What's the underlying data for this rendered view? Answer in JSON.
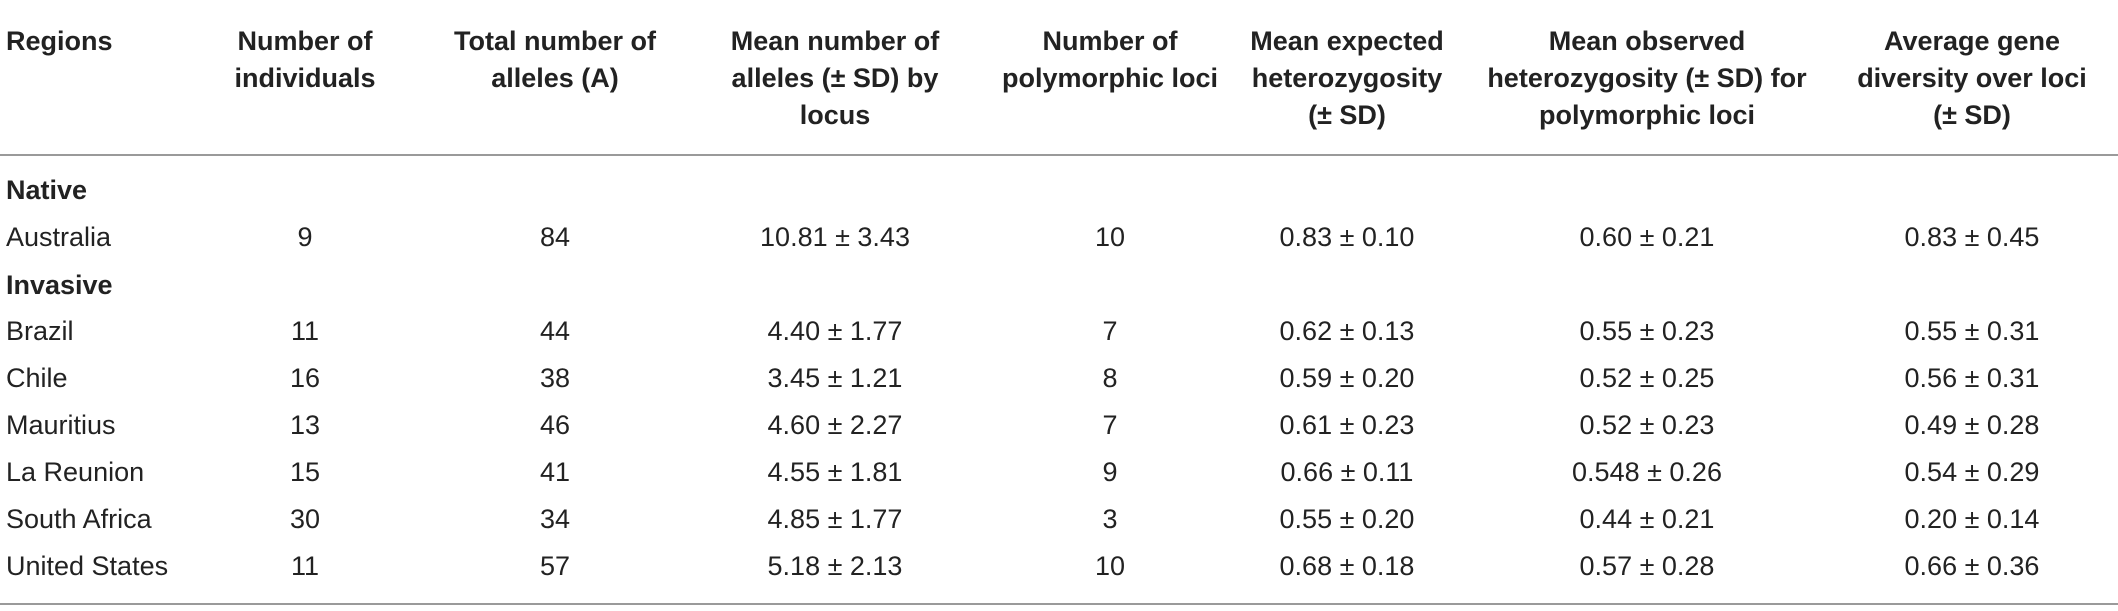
{
  "header": {
    "regions": "Regions",
    "individuals": [
      "Number of",
      "individuals"
    ],
    "alleles": [
      "Total number of",
      "alleles (A)"
    ],
    "mean_alleles": [
      "Mean number of",
      "alleles (± SD) by",
      "locus"
    ],
    "poly_loci": [
      "Number of",
      "polymorphic loci"
    ],
    "exp_het": [
      "Mean expected",
      "heterozygosity",
      "(± SD)"
    ],
    "obs_het": [
      "Mean observed",
      "heterozygosity (± SD) for",
      "polymorphic loci"
    ],
    "gene_div": [
      "Average gene",
      "diversity over loci",
      "(± SD)"
    ]
  },
  "groups": {
    "native": {
      "label": "Native",
      "rows": [
        [
          "Australia",
          "9",
          "84",
          "10.81 ± 3.43",
          "10",
          "0.83 ± 0.10",
          "0.60 ± 0.21",
          "0.83 ± 0.45"
        ]
      ]
    },
    "invasive": {
      "label": "Invasive",
      "rows": [
        [
          "Brazil",
          "11",
          "44",
          "4.40 ± 1.77",
          "7",
          "0.62 ± 0.13",
          "0.55 ± 0.23",
          "0.55 ± 0.31"
        ],
        [
          "Chile",
          "16",
          "38",
          "3.45 ± 1.21",
          "8",
          "0.59 ± 0.20",
          "0.52 ± 0.25",
          "0.56 ± 0.31"
        ],
        [
          "Mauritius",
          "13",
          "46",
          "4.60 ± 2.27",
          "7",
          "0.61 ± 0.23",
          "0.52 ± 0.23",
          "0.49 ± 0.28"
        ],
        [
          "La Reunion",
          "15",
          "41",
          "4.55 ± 1.81",
          "9",
          "0.66 ± 0.11",
          "0.548 ± 0.26",
          "0.54 ± 0.29"
        ],
        [
          "South Africa",
          "30",
          "34",
          "4.85 ± 1.77",
          "3",
          "0.55 ± 0.20",
          "0.44 ± 0.21",
          "0.20 ± 0.14"
        ],
        [
          "United States",
          "11",
          "57",
          "5.18 ± 2.13",
          "10",
          "0.68 ± 0.18",
          "0.57 ± 0.28",
          "0.66 ± 0.36"
        ]
      ]
    }
  }
}
